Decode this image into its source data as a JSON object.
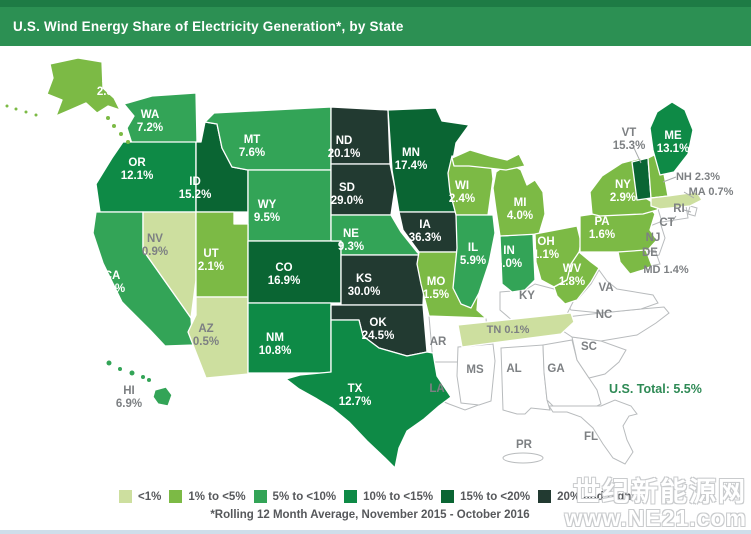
{
  "header": {
    "title": "U.S. Wind Energy Share of Electricity Generation*, by State"
  },
  "map": {
    "us_total_label": "U.S. Total: 5.5%"
  },
  "legend": {
    "items": [
      {
        "label": "<1%",
        "color": "#cddf9f"
      },
      {
        "label": "1% to <5%",
        "color": "#7cba45"
      },
      {
        "label": "5% to <10%",
        "color": "#33a457"
      },
      {
        "label": "10% to <15%",
        "color": "#0e8a46"
      },
      {
        "label": "15% to <20%",
        "color": "#0a6533"
      },
      {
        "label": "20% and higher",
        "color": "#223a31"
      }
    ]
  },
  "footnote": "*Rolling 12 Month Average, November 2015 - October 2016",
  "watermark": {
    "line1": "世纪新能源网",
    "line2": "www.NE21.com"
  },
  "chart_data": {
    "type": "choropleth-map",
    "region": "United States",
    "title": "U.S. Wind Energy Share of Electricity Generation, by State",
    "unit": "% of electricity generation",
    "period": "Rolling 12 Month Average, November 2015 - October 2016",
    "us_total": 5.5,
    "bands": [
      "<1%",
      "1% to <5%",
      "5% to <10%",
      "10% to <15%",
      "15% to <20%",
      "20% and higher"
    ],
    "states": [
      {
        "abbr": "WA",
        "value": 7.2,
        "value_label": "7.2%",
        "band": "5% to <10%"
      },
      {
        "abbr": "OR",
        "value": 12.1,
        "value_label": "12.1%",
        "band": "10% to <15%"
      },
      {
        "abbr": "CA",
        "value": 7.0,
        "value_label": "7.0%",
        "band": "5% to <10%"
      },
      {
        "abbr": "NV",
        "value": 0.9,
        "value_label": "0.9%",
        "band": "<1%"
      },
      {
        "abbr": "ID",
        "value": 15.2,
        "value_label": "15.2%",
        "band": "15% to <20%"
      },
      {
        "abbr": "MT",
        "value": 7.6,
        "value_label": "7.6%",
        "band": "5% to <10%"
      },
      {
        "abbr": "WY",
        "value": 9.5,
        "value_label": "9.5%",
        "band": "5% to <10%"
      },
      {
        "abbr": "UT",
        "value": 2.1,
        "value_label": "2.1%",
        "band": "1% to <5%"
      },
      {
        "abbr": "AZ",
        "value": 0.5,
        "value_label": "0.5%",
        "band": "<1%"
      },
      {
        "abbr": "CO",
        "value": 16.9,
        "value_label": "16.9%",
        "band": "15% to <20%"
      },
      {
        "abbr": "NM",
        "value": 10.8,
        "value_label": "10.8%",
        "band": "10% to <15%"
      },
      {
        "abbr": "ND",
        "value": 20.1,
        "value_label": "20.1%",
        "band": "20% and higher"
      },
      {
        "abbr": "SD",
        "value": 29.0,
        "value_label": "29.0%",
        "band": "20% and higher"
      },
      {
        "abbr": "NE",
        "value": 9.3,
        "value_label": "9.3%",
        "band": "5% to <10%"
      },
      {
        "abbr": "KS",
        "value": 30.0,
        "value_label": "30.0%",
        "band": "20% and higher"
      },
      {
        "abbr": "OK",
        "value": 24.5,
        "value_label": "24.5%",
        "band": "20% and higher"
      },
      {
        "abbr": "TX",
        "value": 12.7,
        "value_label": "12.7%",
        "band": "10% to <15%"
      },
      {
        "abbr": "MN",
        "value": 17.4,
        "value_label": "17.4%",
        "band": "15% to <20%"
      },
      {
        "abbr": "IA",
        "value": 36.3,
        "value_label": "36.3%",
        "band": "20% and higher"
      },
      {
        "abbr": "MO",
        "value": 1.5,
        "value_label": "1.5%",
        "band": "1% to <5%"
      },
      {
        "abbr": "WI",
        "value": 2.4,
        "value_label": "2.4%",
        "band": "1% to <5%"
      },
      {
        "abbr": "IL",
        "value": 5.9,
        "value_label": "5.9%",
        "band": "5% to <10%"
      },
      {
        "abbr": "IN",
        "value": 5.0,
        "value_label": "5.0%",
        "band": "5% to <10%"
      },
      {
        "abbr": "MI",
        "value": 4.0,
        "value_label": "4.0%",
        "band": "1% to <5%"
      },
      {
        "abbr": "OH",
        "value": 1.1,
        "value_label": "1.1%",
        "band": "1% to <5%"
      },
      {
        "abbr": "WV",
        "value": 1.8,
        "value_label": "1.8%",
        "band": "1% to <5%"
      },
      {
        "abbr": "TN",
        "value": 0.1,
        "value_label": "0.1%",
        "band": "<1%"
      },
      {
        "abbr": "PA",
        "value": 1.6,
        "value_label": "1.6%",
        "band": "1% to <5%"
      },
      {
        "abbr": "NY",
        "value": 2.9,
        "value_label": "2.9%",
        "band": "1% to <5%"
      },
      {
        "abbr": "VT",
        "value": 15.3,
        "value_label": "15.3%",
        "band": "15% to <20%"
      },
      {
        "abbr": "NH",
        "value": 2.3,
        "value_label": "2.3%",
        "band": "1% to <5%"
      },
      {
        "abbr": "ME",
        "value": 13.1,
        "value_label": "13.1%",
        "band": "10% to <15%"
      },
      {
        "abbr": "MA",
        "value": 0.7,
        "value_label": "0.7%",
        "band": "<1%"
      },
      {
        "abbr": "MD",
        "value": 1.4,
        "value_label": "1.4%",
        "band": "1% to <5%"
      },
      {
        "abbr": "AK",
        "value": 2.8,
        "value_label": "2.8%",
        "band": "1% to <5%"
      },
      {
        "abbr": "HI",
        "value": 6.9,
        "value_label": "6.9%",
        "band": "5% to <10%"
      }
    ],
    "states_no_data": [
      "AR",
      "LA",
      "MS",
      "AL",
      "GA",
      "FL",
      "SC",
      "NC",
      "VA",
      "KY",
      "RI",
      "CT",
      "NJ",
      "DE",
      "PR"
    ]
  }
}
